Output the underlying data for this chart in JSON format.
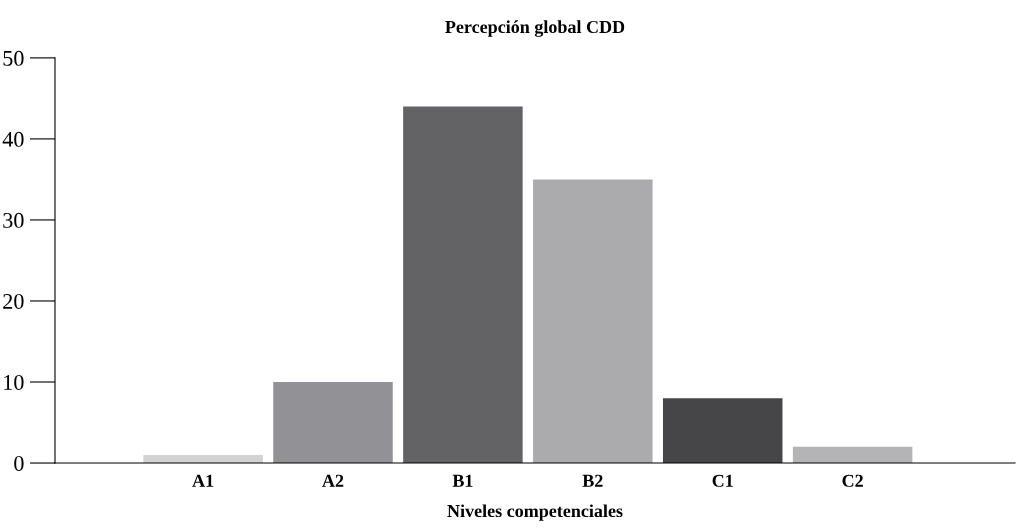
{
  "chart_data": {
    "type": "bar",
    "title": "Percepción global CDD",
    "xlabel": "Niveles competenciales",
    "categories": [
      "A1",
      "A2",
      "B1",
      "B2",
      "C1",
      "C2"
    ],
    "values": [
      1,
      10,
      44,
      35,
      8,
      2
    ],
    "colors": [
      "#d3d3d3",
      "#929296",
      "#636366",
      "#ababae",
      "#464649",
      "#b4b4b6"
    ],
    "ylim": [
      0,
      50
    ],
    "yticks": [
      0,
      10,
      20,
      30,
      40,
      50
    ],
    "grid": false,
    "legend": false
  }
}
